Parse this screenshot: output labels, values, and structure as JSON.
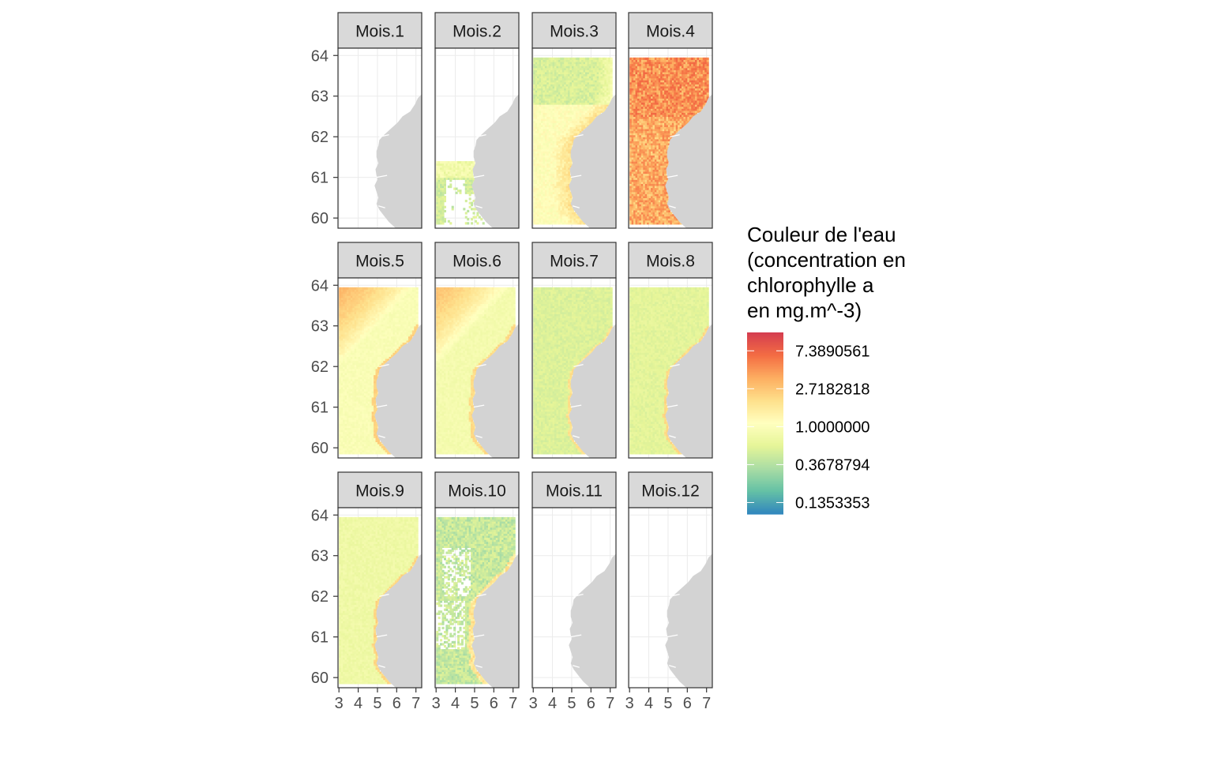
{
  "chart_data": {
    "type": "heatmap",
    "panel_layout": "facet grid, 3 rows x 4 columns",
    "panels": [
      {
        "label": "Mois.1",
        "coverage": "none",
        "pattern": "none",
        "level": 0
      },
      {
        "label": "Mois.2",
        "coverage": "partial",
        "pattern": "southwest",
        "level": 0.62
      },
      {
        "label": "Mois.3",
        "coverage": "full",
        "pattern": "coastal_high",
        "level": 1.1
      },
      {
        "label": "Mois.4",
        "coverage": "full",
        "pattern": "bloom",
        "level": 3.8
      },
      {
        "label": "Mois.5",
        "coverage": "full",
        "pattern": "northwest_high",
        "level": 0.95
      },
      {
        "label": "Mois.6",
        "coverage": "full",
        "pattern": "northwest_high",
        "level": 0.85
      },
      {
        "label": "Mois.7",
        "coverage": "full",
        "pattern": "uniform_low",
        "level": 0.55
      },
      {
        "label": "Mois.8",
        "coverage": "full",
        "pattern": "uniform_low",
        "level": 0.6
      },
      {
        "label": "Mois.9",
        "coverage": "full",
        "pattern": "uniform",
        "level": 0.75
      },
      {
        "label": "Mois.10",
        "coverage": "patchy",
        "pattern": "patchy_low",
        "level": 0.45
      },
      {
        "label": "Mois.11",
        "coverage": "none",
        "pattern": "none",
        "level": 0
      },
      {
        "label": "Mois.12",
        "coverage": "none",
        "pattern": "none",
        "level": 0
      }
    ],
    "x_ticks": [
      3,
      4,
      5,
      6,
      7
    ],
    "y_ticks": [
      60,
      61,
      62,
      63,
      64
    ],
    "xlim": [
      2.95,
      7.3
    ],
    "ylim": [
      59.75,
      64.18
    ],
    "data_extent": {
      "lon": [
        3.0,
        7.05
      ],
      "lat": [
        59.85,
        63.93
      ]
    },
    "land_color": "#d3d3d3",
    "legend": {
      "title_lines": [
        "Couleur de l'eau",
        "(concentration en",
        "chlorophylle a",
        "en mg.m^-3)"
      ],
      "position": "right",
      "scale": "log",
      "range": [
        0.1,
        12
      ],
      "labels": [
        "7.3890561",
        "2.7182818",
        "1.0000000",
        "0.3678794",
        "0.1353353"
      ],
      "label_values": [
        7.3890561,
        2.7182818,
        1.0,
        0.3678794,
        0.1353353
      ],
      "palette": [
        "#3288bd",
        "#66c2a5",
        "#abdda4",
        "#e6f598",
        "#ffffbf",
        "#fee08b",
        "#fdae61",
        "#f46d43",
        "#d53e4f"
      ]
    },
    "grid": true,
    "theme": "bw"
  }
}
